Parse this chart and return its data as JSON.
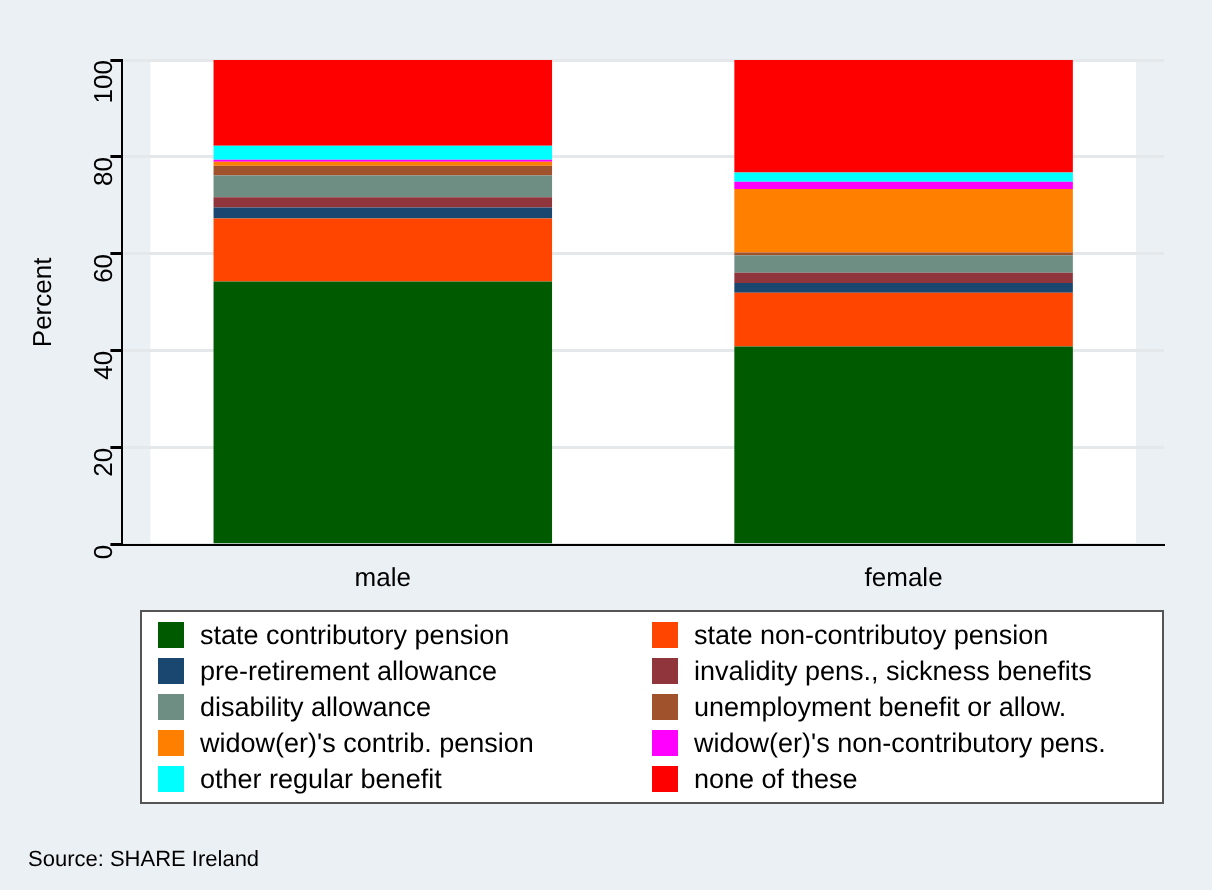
{
  "chart_data": {
    "type": "bar",
    "stacked": true,
    "ylabel": "Percent",
    "categories": [
      "male",
      "female"
    ],
    "ylim": [
      0,
      100
    ],
    "yticks": [
      0,
      20,
      40,
      60,
      80,
      100
    ],
    "grid": "y",
    "legend": "bottom",
    "annotations": [
      "Source:  SHARE Ireland"
    ],
    "series": [
      {
        "name": "state contributory pension",
        "color": "#005a00",
        "values": [
          54.3,
          40.9
        ]
      },
      {
        "name": "state non-contributoy pension",
        "color": "#ff4500",
        "values": [
          13.0,
          11.1
        ]
      },
      {
        "name": "pre-retirement allowance",
        "color": "#1a476f",
        "values": [
          2.3,
          2.0
        ]
      },
      {
        "name": "invalidity pens., sickness benefits",
        "color": "#90353b",
        "values": [
          2.1,
          2.1
        ]
      },
      {
        "name": "disability allowance",
        "color": "#6e8e84",
        "values": [
          4.5,
          3.6
        ]
      },
      {
        "name": "unemployment benefit or allow.",
        "color": "#a0522d",
        "values": [
          2.0,
          0.6
        ]
      },
      {
        "name": "widow(er)'s contrib. pension",
        "color": "#ff7f00",
        "values": [
          0.8,
          13.1
        ]
      },
      {
        "name": "widow(er)'s non-contributory pens.",
        "color": "#ff00ff",
        "values": [
          0.4,
          1.5
        ]
      },
      {
        "name": "other regular benefit",
        "color": "#00ffff",
        "values": [
          2.9,
          1.9
        ]
      },
      {
        "name": "none of these",
        "color": "#ff0000",
        "values": [
          17.7,
          23.2
        ]
      }
    ]
  }
}
